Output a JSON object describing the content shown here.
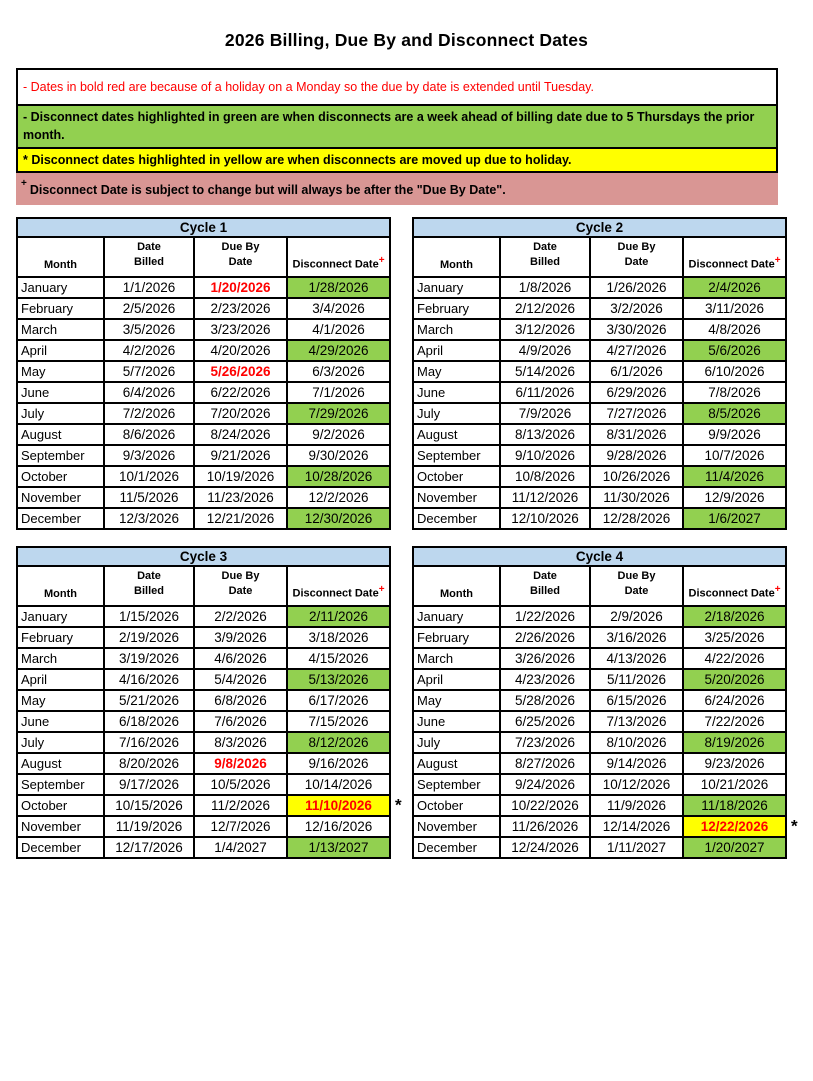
{
  "page": {
    "title": "2026 Billing, Due By and Disconnect Dates"
  },
  "colors": {
    "cycle_header_bg": "#BDD7EE",
    "disconnect_header_bg": "#D99694",
    "green_highlight": "#92D050",
    "yellow_highlight": "#FFFF00",
    "holiday_red": "#FF0000"
  },
  "asterisk": "*",
  "legend": {
    "items": [
      {
        "text": "- Dates in bold red are because of a holiday on a Monday so the due by date is extended until Tuesday.",
        "bg": "#FFFFFF",
        "color": "#FF0000",
        "bold": false,
        "bordered": true
      },
      {
        "text": "- Disconnect dates highlighted in green are when disconnects are a week ahead of billing date due to 5 Thursdays the prior month.",
        "bg": "#92D050",
        "color": "#000000",
        "bold": true,
        "bordered": true
      },
      {
        "text": "* Disconnect dates highlighted in yellow are when disconnects are moved up due to holiday.",
        "bg": "#FFFF00",
        "color": "#000000",
        "bold": true,
        "bordered": true
      },
      {
        "sup": "+",
        "text": "Disconnect Date is subject to change but will always be after the \"Due By Date\".",
        "bg": "#D99694",
        "color": "#000000",
        "bold": true,
        "bordered": false
      }
    ]
  },
  "table_headers": {
    "month": "Month",
    "date_billed_line1": "Date",
    "date_billed_line2": "Billed",
    "due_by_line1": "Due By",
    "due_by_line2": "Date",
    "disconnect": "Disconnect Date",
    "disconnect_sup": "+"
  },
  "cycles": [
    {
      "name": "Cycle 1",
      "rows": [
        {
          "month": "January",
          "billed": "1/1/2026",
          "due": "1/20/2026",
          "due_holiday": true,
          "disconnect": "1/28/2026",
          "highlight": "green"
        },
        {
          "month": "February",
          "billed": "2/5/2026",
          "due": "2/23/2026",
          "disconnect": "3/4/2026"
        },
        {
          "month": "March",
          "billed": "3/5/2026",
          "due": "3/23/2026",
          "disconnect": "4/1/2026"
        },
        {
          "month": "April",
          "billed": "4/2/2026",
          "due": "4/20/2026",
          "disconnect": "4/29/2026",
          "highlight": "green"
        },
        {
          "month": "May",
          "billed": "5/7/2026",
          "due": "5/26/2026",
          "due_holiday": true,
          "disconnect": "6/3/2026"
        },
        {
          "month": "June",
          "billed": "6/4/2026",
          "due": "6/22/2026",
          "disconnect": "7/1/2026"
        },
        {
          "month": "July",
          "billed": "7/2/2026",
          "due": "7/20/2026",
          "disconnect": "7/29/2026",
          "highlight": "green"
        },
        {
          "month": "August",
          "billed": "8/6/2026",
          "due": "8/24/2026",
          "disconnect": "9/2/2026"
        },
        {
          "month": "September",
          "billed": "9/3/2026",
          "due": "9/21/2026",
          "disconnect": "9/30/2026"
        },
        {
          "month": "October",
          "billed": "10/1/2026",
          "due": "10/19/2026",
          "disconnect": "10/28/2026",
          "highlight": "green"
        },
        {
          "month": "November",
          "billed": "11/5/2026",
          "due": "11/23/2026",
          "disconnect": "12/2/2026"
        },
        {
          "month": "December",
          "billed": "12/3/2026",
          "due": "12/21/2026",
          "disconnect": "12/30/2026",
          "highlight": "green"
        }
      ]
    },
    {
      "name": "Cycle 2",
      "rows": [
        {
          "month": "January",
          "billed": "1/8/2026",
          "due": "1/26/2026",
          "disconnect": "2/4/2026",
          "highlight": "green"
        },
        {
          "month": "February",
          "billed": "2/12/2026",
          "due": "3/2/2026",
          "disconnect": "3/11/2026"
        },
        {
          "month": "March",
          "billed": "3/12/2026",
          "due": "3/30/2026",
          "disconnect": "4/8/2026"
        },
        {
          "month": "April",
          "billed": "4/9/2026",
          "due": "4/27/2026",
          "disconnect": "5/6/2026",
          "highlight": "green"
        },
        {
          "month": "May",
          "billed": "5/14/2026",
          "due": "6/1/2026",
          "disconnect": "6/10/2026"
        },
        {
          "month": "June",
          "billed": "6/11/2026",
          "due": "6/29/2026",
          "disconnect": "7/8/2026"
        },
        {
          "month": "July",
          "billed": "7/9/2026",
          "due": "7/27/2026",
          "disconnect": "8/5/2026",
          "highlight": "green"
        },
        {
          "month": "August",
          "billed": "8/13/2026",
          "due": "8/31/2026",
          "disconnect": "9/9/2026"
        },
        {
          "month": "September",
          "billed": "9/10/2026",
          "due": "9/28/2026",
          "disconnect": "10/7/2026"
        },
        {
          "month": "October",
          "billed": "10/8/2026",
          "due": "10/26/2026",
          "disconnect": "11/4/2026",
          "highlight": "green"
        },
        {
          "month": "November",
          "billed": "11/12/2026",
          "due": "11/30/2026",
          "disconnect": "12/9/2026"
        },
        {
          "month": "December",
          "billed": "12/10/2026",
          "due": "12/28/2026",
          "disconnect": "1/6/2027",
          "highlight": "green"
        }
      ]
    },
    {
      "name": "Cycle 3",
      "rows": [
        {
          "month": "January",
          "billed": "1/15/2026",
          "due": "2/2/2026",
          "disconnect": "2/11/2026",
          "highlight": "green"
        },
        {
          "month": "February",
          "billed": "2/19/2026",
          "due": "3/9/2026",
          "disconnect": "3/18/2026"
        },
        {
          "month": "March",
          "billed": "3/19/2026",
          "due": "4/6/2026",
          "disconnect": "4/15/2026"
        },
        {
          "month": "April",
          "billed": "4/16/2026",
          "due": "5/4/2026",
          "disconnect": "5/13/2026",
          "highlight": "green"
        },
        {
          "month": "May",
          "billed": "5/21/2026",
          "due": "6/8/2026",
          "disconnect": "6/17/2026"
        },
        {
          "month": "June",
          "billed": "6/18/2026",
          "due": "7/6/2026",
          "disconnect": "7/15/2026"
        },
        {
          "month": "July",
          "billed": "7/16/2026",
          "due": "8/3/2026",
          "disconnect": "8/12/2026",
          "highlight": "green"
        },
        {
          "month": "August",
          "billed": "8/20/2026",
          "due": "9/8/2026",
          "due_holiday": true,
          "disconnect": "9/16/2026"
        },
        {
          "month": "September",
          "billed": "9/17/2026",
          "due": "10/5/2026",
          "disconnect": "10/14/2026"
        },
        {
          "month": "October",
          "billed": "10/15/2026",
          "due": "11/2/2026",
          "disconnect": "11/10/2026",
          "highlight": "yellow",
          "asterisk": true
        },
        {
          "month": "November",
          "billed": "11/19/2026",
          "due": "12/7/2026",
          "disconnect": "12/16/2026"
        },
        {
          "month": "December",
          "billed": "12/17/2026",
          "due": "1/4/2027",
          "disconnect": "1/13/2027",
          "highlight": "green"
        }
      ]
    },
    {
      "name": "Cycle 4",
      "rows": [
        {
          "month": "January",
          "billed": "1/22/2026",
          "due": "2/9/2026",
          "disconnect": "2/18/2026",
          "highlight": "green"
        },
        {
          "month": "February",
          "billed": "2/26/2026",
          "due": "3/16/2026",
          "disconnect": "3/25/2026"
        },
        {
          "month": "March",
          "billed": "3/26/2026",
          "due": "4/13/2026",
          "disconnect": "4/22/2026"
        },
        {
          "month": "April",
          "billed": "4/23/2026",
          "due": "5/11/2026",
          "disconnect": "5/20/2026",
          "highlight": "green"
        },
        {
          "month": "May",
          "billed": "5/28/2026",
          "due": "6/15/2026",
          "disconnect": "6/24/2026"
        },
        {
          "month": "June",
          "billed": "6/25/2026",
          "due": "7/13/2026",
          "disconnect": "7/22/2026"
        },
        {
          "month": "July",
          "billed": "7/23/2026",
          "due": "8/10/2026",
          "disconnect": "8/19/2026",
          "highlight": "green"
        },
        {
          "month": "August",
          "billed": "8/27/2026",
          "due": "9/14/2026",
          "disconnect": "9/23/2026"
        },
        {
          "month": "September",
          "billed": "9/24/2026",
          "due": "10/12/2026",
          "disconnect": "10/21/2026"
        },
        {
          "month": "October",
          "billed": "10/22/2026",
          "due": "11/9/2026",
          "disconnect": "11/18/2026",
          "highlight": "green"
        },
        {
          "month": "November",
          "billed": "11/26/2026",
          "due": "12/14/2026",
          "disconnect": "12/22/2026",
          "highlight": "yellow",
          "asterisk": true
        },
        {
          "month": "December",
          "billed": "12/24/2026",
          "due": "1/11/2027",
          "disconnect": "1/20/2027",
          "highlight": "green"
        }
      ]
    }
  ]
}
